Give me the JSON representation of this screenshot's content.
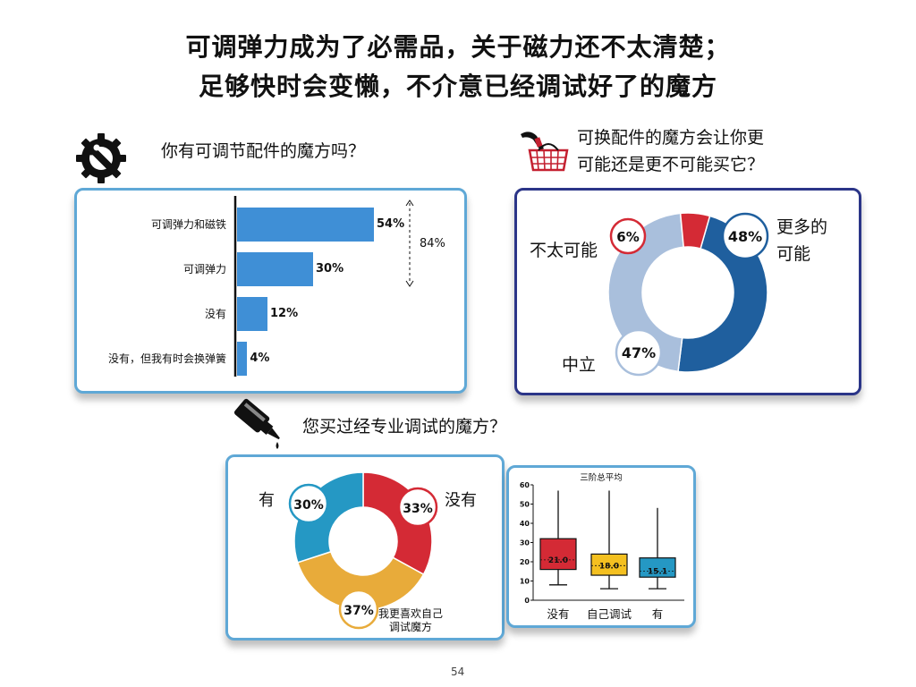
{
  "title": {
    "line1": "可调弹力成为了必需品，关于磁力还不太清楚；",
    "line2": "足够快时会变懒，不介意已经调试好了的魔方"
  },
  "q1": {
    "question": "你有可调节配件的魔方吗？",
    "icon": "gear-wrench-icon"
  },
  "q2": {
    "question_line1": "可换配件的魔方会让你更",
    "question_line2": "可能还是更不可能买它？",
    "icon": "shopping-basket-icon"
  },
  "q3": {
    "question": "您买过经专业调试的魔方？",
    "icon": "lube-bottle-icon"
  },
  "page_number": "54",
  "colors": {
    "bar": "#3f8fd6",
    "red": "#d42a35",
    "darkblue": "#1f5f9e",
    "lightblue": "#a9bfdc",
    "teal": "#2598c4",
    "gold": "#e8ab3a",
    "yellow": "#f4c020",
    "navy": "#2b3588"
  },
  "chart_data": [
    {
      "type": "bar",
      "orientation": "horizontal",
      "categories": [
        "可调弹力和磁铁",
        "可调弹力",
        "没有",
        "没有，但我有时会换弹簧"
      ],
      "values": [
        54,
        30,
        12,
        4
      ],
      "labels": [
        "54%",
        "30%",
        "12%",
        "4%"
      ],
      "annotation": "84%",
      "xlim": [
        0,
        60
      ]
    },
    {
      "type": "pie",
      "donut": true,
      "slices": [
        {
          "label": "更多的可能",
          "label_line1": "更多的",
          "label_line2": "可能",
          "value": 48,
          "value_label": "48%",
          "color": "#1f5f9e"
        },
        {
          "label": "中立",
          "value": 47,
          "value_label": "47%",
          "color": "#a9bfdc"
        },
        {
          "label": "不太可能",
          "value": 6,
          "value_label": "6%",
          "color": "#d42a35"
        }
      ]
    },
    {
      "type": "pie",
      "donut": true,
      "slices": [
        {
          "label": "没有",
          "value": 33,
          "value_label": "33%",
          "color": "#d42a35"
        },
        {
          "label": "我更喜欢自己调试魔方",
          "label_line1": "我更喜欢自己",
          "label_line2": "调试魔方",
          "value": 37,
          "value_label": "37%",
          "color": "#e8ab3a"
        },
        {
          "label": "有",
          "value": 30,
          "value_label": "30%",
          "color": "#2598c4"
        }
      ]
    },
    {
      "type": "box",
      "title": "三阶总平均",
      "ylim": [
        0,
        60
      ],
      "yticks": [
        0,
        10,
        20,
        30,
        40,
        50,
        60
      ],
      "categories": [
        "没有",
        "自己调试",
        "有"
      ],
      "boxes": [
        {
          "label": "没有",
          "min": 8,
          "q1": 16,
          "median": 21.0,
          "q3": 32,
          "max": 57,
          "median_label": "21.0",
          "color": "#d42a35"
        },
        {
          "label": "自己调试",
          "min": 6,
          "q1": 13,
          "median": 18.0,
          "q3": 24,
          "max": 57,
          "median_label": "18.0",
          "color": "#f4c020"
        },
        {
          "label": "有",
          "min": 6,
          "q1": 12,
          "median": 15.1,
          "q3": 22,
          "max": 48,
          "median_label": "15.1",
          "color": "#2598c4"
        }
      ]
    }
  ]
}
